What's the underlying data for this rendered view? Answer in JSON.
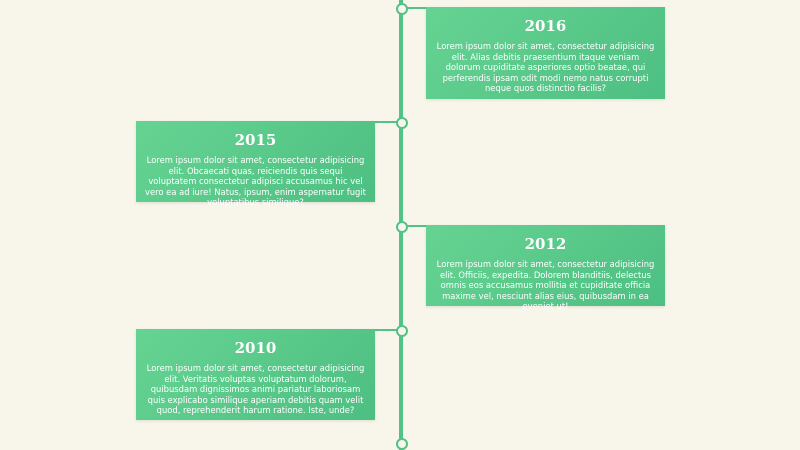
{
  "timeline": {
    "events": [
      {
        "year": "2016",
        "text": "Lorem ipsum dolor sit amet, consectetur adipisicing elit. Alias debitis praesentium itaque veniam dolorum cupiditate asperiores optio beatae, qui perferendis ipsam odit modi nemo natus corrupti neque quos distinctio facilis?"
      },
      {
        "year": "2015",
        "text": "Lorem ipsum dolor sit amet, consectetur adipisicing elit. Obcaecati quas, reiciendis quis sequi voluptatem consectetur adipisci accusamus hic vel vero ea ad iure! Natus, ipsum, enim aspernatur fugit voluptatibus similique?"
      },
      {
        "year": "2012",
        "text": "Lorem ipsum dolor sit amet, consectetur adipisicing elit. Officiis, expedita. Dolorem blanditiis, delectus omnis eos accusamus mollitia et cupiditate officia maxime vel, nesciunt alias eius, quibusdam in ea eveniet ut!"
      },
      {
        "year": "2010",
        "text": "Lorem ipsum dolor sit amet, consectetur adipisicing elit. Veritatis voluptas voluptatum dolorum, quibusdam dignissimos animi pariatur laboriosam quis explicabo similique aperiam debitis quam velit quod, reprehenderit harum ratione. Iste, unde?"
      }
    ]
  },
  "colors": {
    "background": "#f8f6ea",
    "accent": "#52c286",
    "card_text": "#ffffff"
  }
}
